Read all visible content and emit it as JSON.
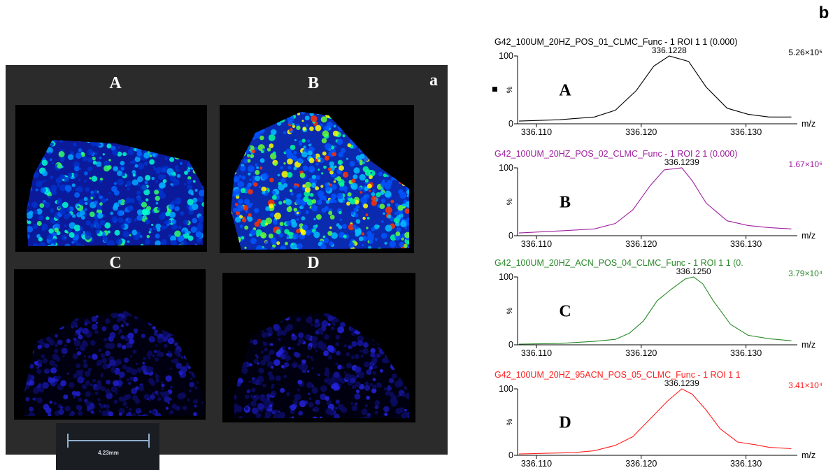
{
  "panel_a": {
    "label": "a",
    "images": [
      {
        "label": "A"
      },
      {
        "label": "B"
      },
      {
        "label": "C"
      },
      {
        "label": "D"
      }
    ],
    "scale_bar": "4.23mm"
  },
  "panel_b": {
    "label": "b"
  },
  "chart_data": [
    {
      "type": "line",
      "title": "G42_100UM_20HZ_POS_01_CLMC_Func - 1 ROI 1 1 (0.000)",
      "panel_label": "A",
      "peak_label": "336.1228",
      "intensity": "5.26×10⁵",
      "xlabel": "m/z",
      "ylabel": "%",
      "color": "#000000",
      "x": [
        336.10833,
        336.1122,
        336.11553,
        336.11753,
        336.11953,
        336.1212,
        336.12267,
        336.12453,
        336.1262,
        336.1282,
        336.1302,
        336.1322,
        336.13433
      ],
      "values": [
        4,
        6,
        10,
        20,
        49,
        85,
        100,
        92,
        54,
        23,
        14,
        10,
        10
      ],
      "xlim": [
        336.1082,
        336.1347
      ],
      "ylim": [
        0,
        100
      ],
      "xticks": [
        {
          "value": 336.11,
          "label": "336.110"
        },
        {
          "value": 336.12,
          "label": "336.120"
        },
        {
          "value": 336.13,
          "label": "336.130"
        }
      ],
      "yticks": [
        0,
        100
      ]
    },
    {
      "type": "line",
      "title": "G42_100UM_20HZ_POS_02_CLMC_Func - 1 ROI 2 1 (0.000)",
      "panel_label": "B",
      "peak_label": "336.1239",
      "intensity": "1.67×10⁶",
      "xlabel": "m/z",
      "ylabel": "%",
      "color": "#a020a0",
      "x": [
        336.10833,
        336.1122,
        336.11553,
        336.11753,
        336.1192,
        336.12087,
        336.1222,
        336.12387,
        336.12487,
        336.1262,
        336.1282,
        336.1302,
        336.1322,
        336.13433
      ],
      "values": [
        4,
        7,
        10,
        18,
        38,
        74,
        97,
        100,
        81,
        48,
        22,
        15,
        12,
        10
      ],
      "xlim": [
        336.1082,
        336.1347
      ],
      "ylim": [
        0,
        100
      ],
      "xticks": [
        {
          "value": 336.11,
          "label": "336.110"
        },
        {
          "value": 336.12,
          "label": "336.120"
        },
        {
          "value": 336.13,
          "label": "336.130"
        }
      ],
      "yticks": [
        0,
        100
      ]
    },
    {
      "type": "line",
      "title": "G42_100UM_20HZ_ACN_POS_04_CLMC_Func - 1 ROI 1 1 (0.",
      "panel_label": "C",
      "peak_label": "336.1250",
      "intensity": "3.79×10⁴",
      "xlabel": "m/z",
      "ylabel": "%",
      "color": "#2a8a2a",
      "x": [
        336.10833,
        336.1122,
        336.11553,
        336.11753,
        336.11887,
        336.1202,
        336.12153,
        336.12287,
        336.1242,
        336.125,
        336.12587,
        336.12687,
        336.12853,
        336.1302,
        336.1322,
        336.13433
      ],
      "values": [
        1,
        2,
        5,
        8,
        17,
        35,
        65,
        82,
        97,
        100,
        90,
        65,
        30,
        14,
        9,
        6
      ],
      "xlim": [
        336.1082,
        336.1347
      ],
      "ylim": [
        0,
        100
      ],
      "xticks": [
        {
          "value": 336.11,
          "label": "336.110"
        },
        {
          "value": 336.12,
          "label": "336.120"
        },
        {
          "value": 336.13,
          "label": "336.130"
        }
      ],
      "yticks": [
        0,
        100
      ]
    },
    {
      "type": "line",
      "title": "G42_100UM_20HZ_95ACN_POS_05_CLMC_Func - 1 ROI 1 1",
      "panel_label": "D",
      "peak_label": "336.1239",
      "intensity": "3.41×10⁴",
      "xlabel": "m/z",
      "ylabel": "%",
      "color": "#ff2020",
      "x": [
        336.10833,
        336.11087,
        336.11353,
        336.11553,
        336.11753,
        336.1192,
        336.12087,
        336.12253,
        336.12387,
        336.12487,
        336.1262,
        336.12753,
        336.1292,
        336.13087,
        336.1322,
        336.13433
      ],
      "values": [
        2,
        3,
        4,
        7,
        15,
        28,
        55,
        82,
        100,
        92,
        68,
        40,
        20,
        16,
        12,
        10
      ],
      "xlim": [
        336.1082,
        336.1347
      ],
      "ylim": [
        0,
        100
      ],
      "xticks": [
        {
          "value": 336.11,
          "label": "336.110"
        },
        {
          "value": 336.12,
          "label": "336.120"
        },
        {
          "value": 336.13,
          "label": "336.130"
        }
      ],
      "yticks": [
        0,
        100
      ]
    }
  ]
}
